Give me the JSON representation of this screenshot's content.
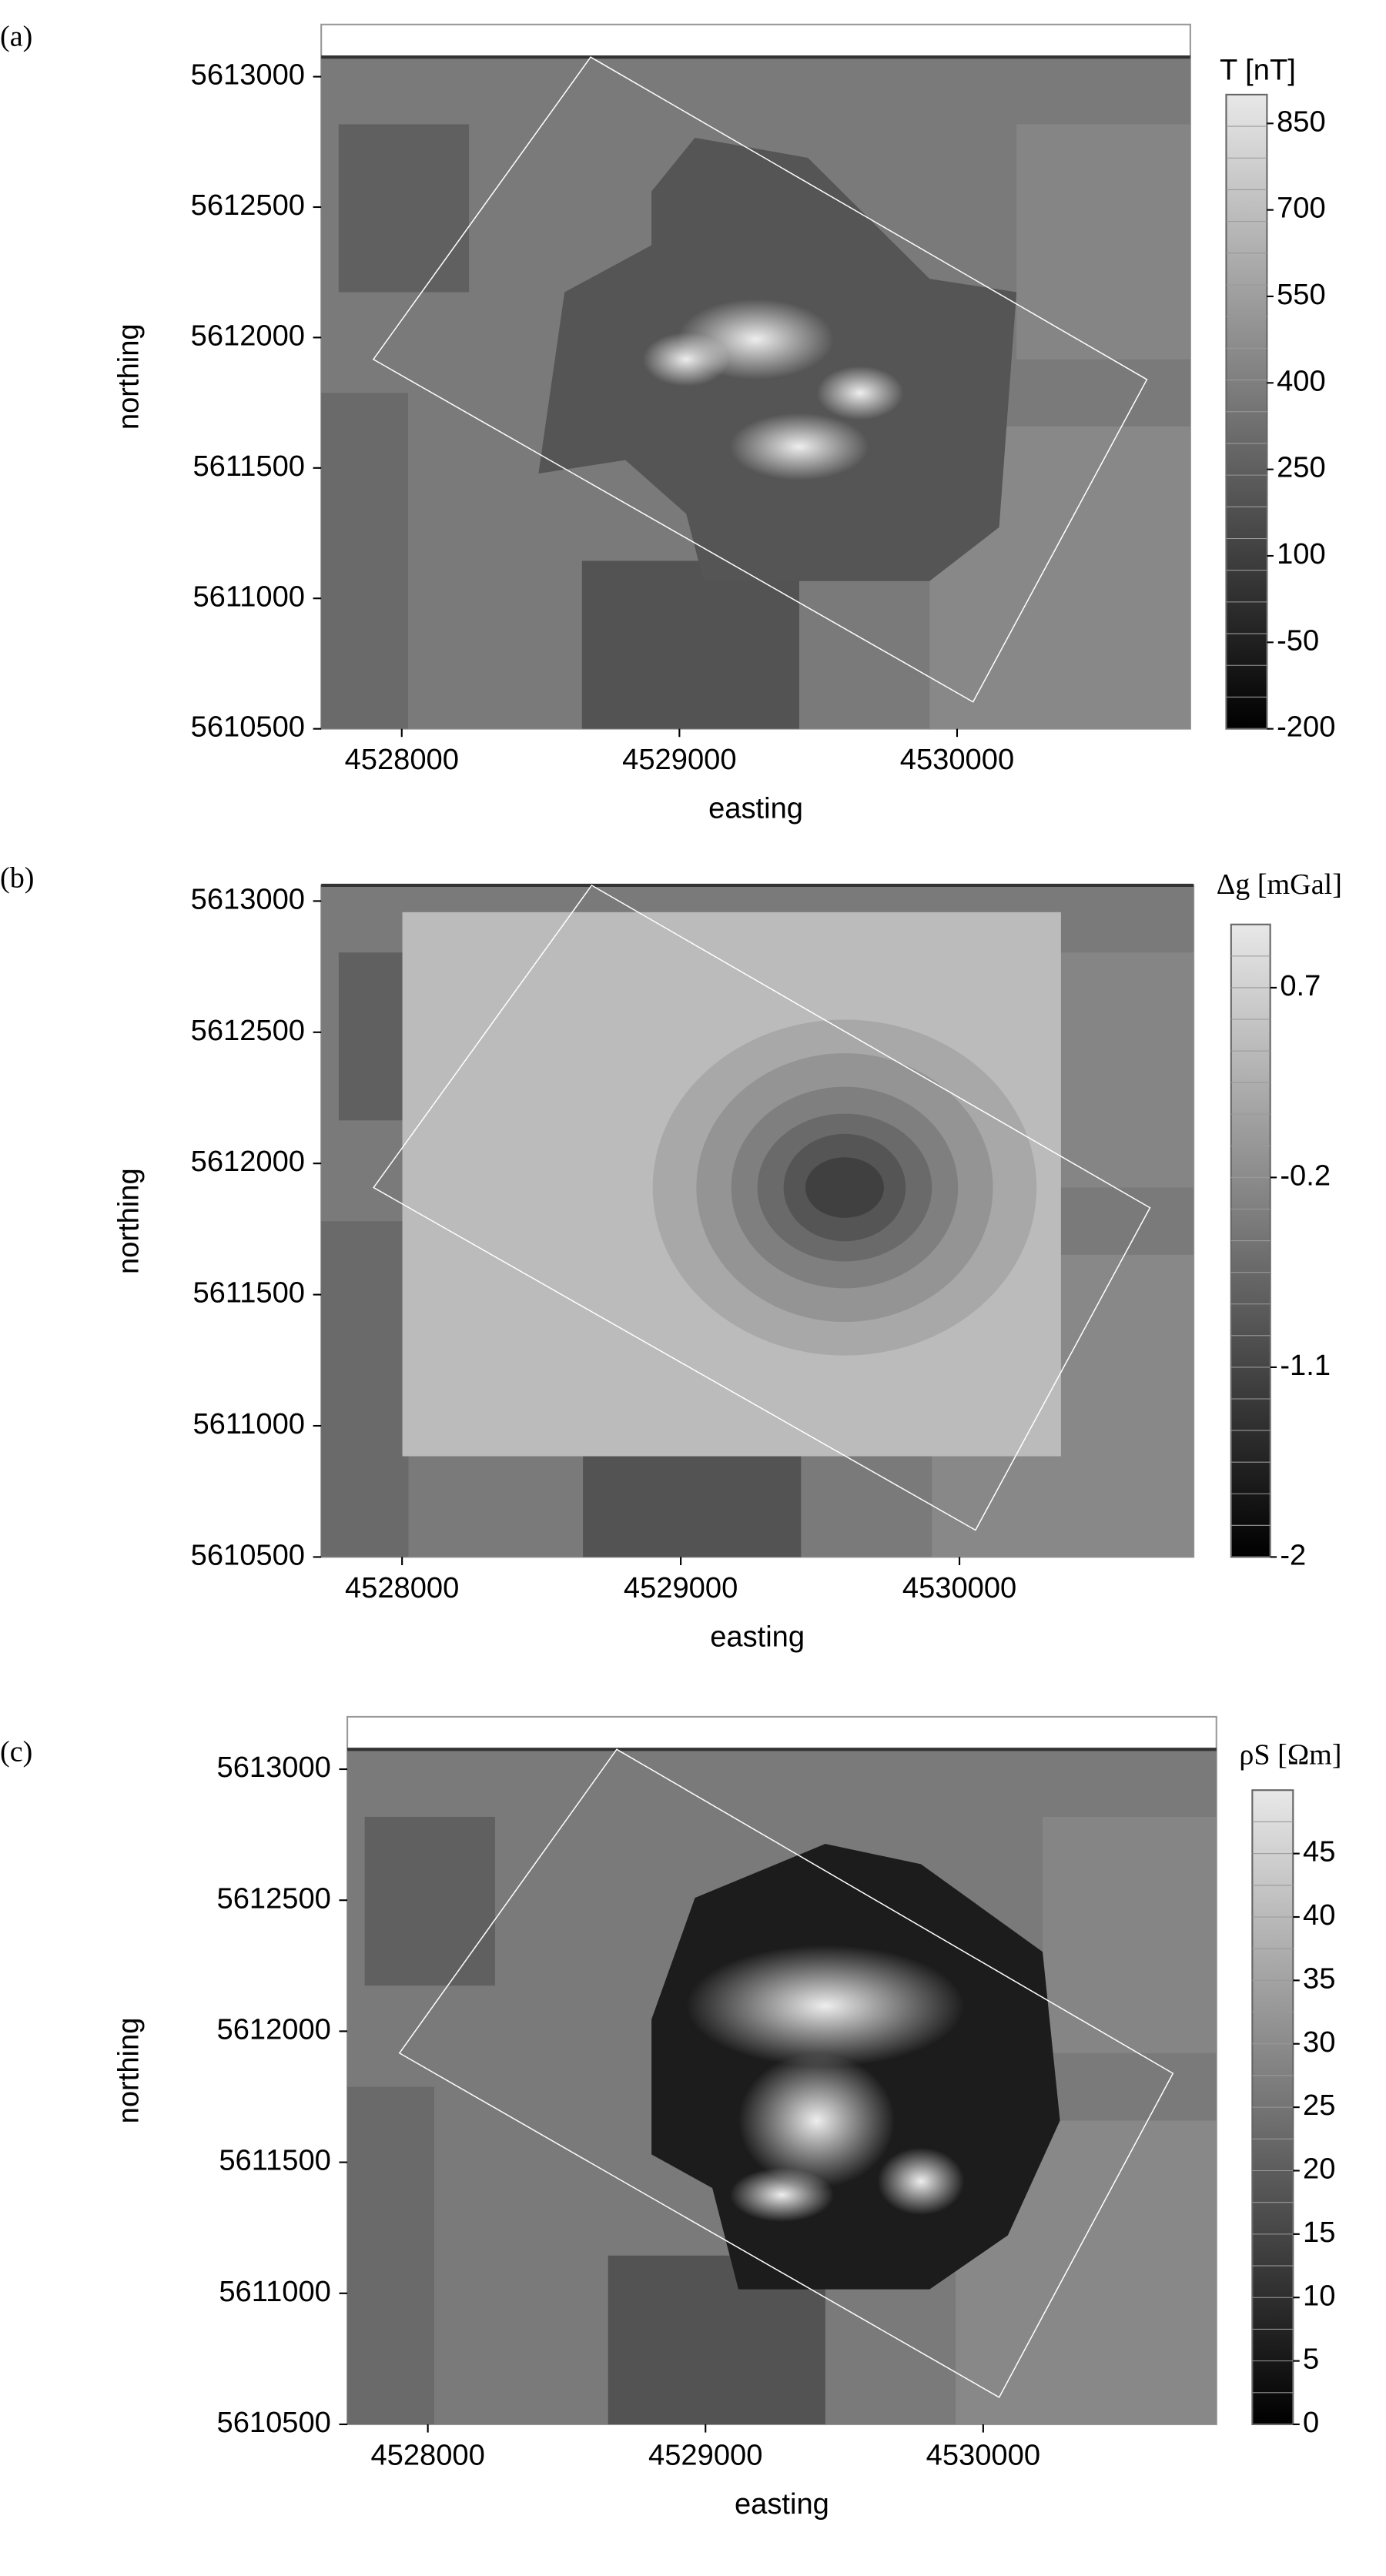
{
  "chart_data": [
    {
      "type": "map",
      "panel_label": "(a)",
      "xlabel": "easting",
      "ylabel": "northing",
      "xlim": [
        4527710,
        4530840
      ],
      "ylim": [
        5610500,
        5613200
      ],
      "xticks": [
        4528000,
        4529000,
        4530000
      ],
      "yticks": [
        5610500,
        5611000,
        5611500,
        5612000,
        5612500,
        5613000
      ],
      "colorbar": {
        "title": "T [nT]",
        "lim": [
          -200,
          900
        ],
        "ticks": [
          -200,
          -50,
          100,
          250,
          400,
          550,
          700,
          850
        ]
      }
    },
    {
      "type": "map",
      "panel_label": "(b)",
      "xlabel": "easting",
      "ylabel": "northing",
      "xlim": [
        4527710,
        4530840
      ],
      "ylim": [
        5610500,
        5613060
      ],
      "xticks": [
        4528000,
        4529000,
        4530000
      ],
      "yticks": [
        5610500,
        5611000,
        5611500,
        5612000,
        5612500,
        5613000
      ],
      "colorbar": {
        "title": "Δg [mGal]",
        "lim": [
          -2,
          1.0
        ],
        "ticks": [
          -2,
          -1.1,
          -0.2,
          0.7
        ]
      }
    },
    {
      "type": "map",
      "panel_label": "(c)",
      "xlabel": "easting",
      "ylabel": "northing",
      "xlim": [
        4527710,
        4530840
      ],
      "ylim": [
        5610500,
        5613200
      ],
      "xticks": [
        4528000,
        4529000,
        4530000
      ],
      "yticks": [
        5610500,
        5611000,
        5611500,
        5612000,
        5612500,
        5613000
      ],
      "colorbar": {
        "title": "ρS [Ωm]",
        "lim": [
          0,
          50
        ],
        "ticks": [
          0,
          5,
          10,
          15,
          20,
          25,
          30,
          35,
          40,
          45
        ]
      }
    }
  ]
}
